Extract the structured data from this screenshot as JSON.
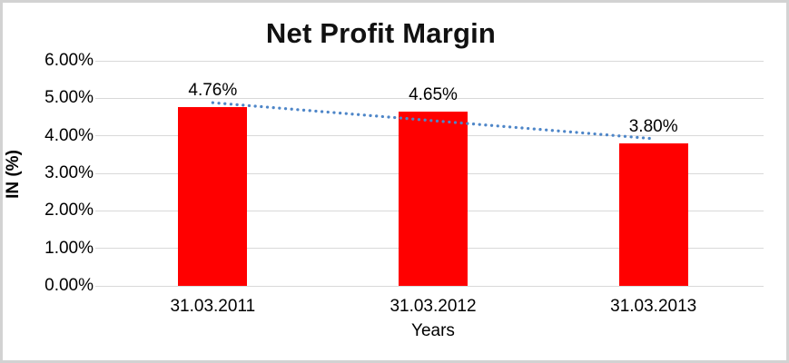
{
  "chart": {
    "title": "Net Profit Margin",
    "y_axis_title": "IN (%)",
    "x_axis_title": "Years"
  },
  "chart_data": {
    "type": "bar",
    "title": "Net Profit Margin",
    "categories": [
      "31.03.2011",
      "31.03.2012",
      "31.03.2013"
    ],
    "values": [
      4.76,
      4.65,
      3.8
    ],
    "data_labels": [
      "4.76%",
      "4.65%",
      "3.80%"
    ],
    "xlabel": "Years",
    "ylabel": "IN (%)",
    "ylim": [
      0,
      6
    ],
    "y_ticks": [
      "6.00%",
      "5.00%",
      "4.00%",
      "3.00%",
      "2.00%",
      "1.00%",
      "0.00%"
    ],
    "grid": true,
    "legend": false,
    "bar_color": "#ff0000",
    "gridline_color": "#d9d9d9",
    "trendline": {
      "type": "linear",
      "style": "dotted",
      "color": "#4e86c8"
    }
  }
}
